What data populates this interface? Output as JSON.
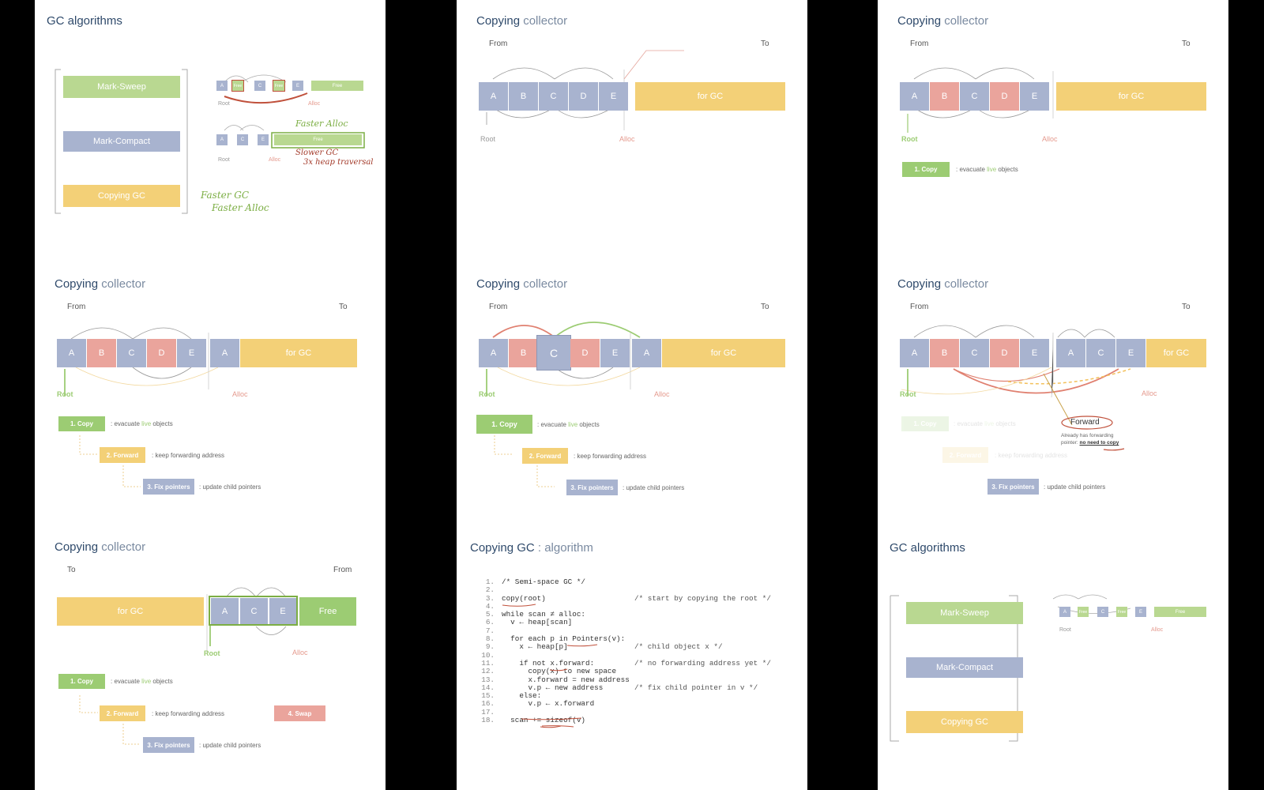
{
  "s1": {
    "title": "GC algorithms",
    "algos": [
      "Mark-Sweep",
      "Mark-Compact",
      "Copying GC"
    ],
    "ms_cells": [
      "A",
      "Free",
      "C",
      "Free",
      "E"
    ],
    "free": "Free",
    "mc_cells": [
      "A",
      "C",
      "E"
    ],
    "root": "Root",
    "alloc": "Alloc",
    "hand_faster_alloc": "Faster Alloc",
    "hand_slower_gc": "Slower GC",
    "hand_traversal": "3x heap traversal",
    "hand_faster_gc": "Faster GC",
    "hand_faster_alloc2": "Faster Alloc"
  },
  "s2": {
    "title_a": "Copying",
    "title_b": " collector",
    "from": "From",
    "to": "To",
    "cells": [
      "A",
      "B",
      "C",
      "D",
      "E"
    ],
    "for_gc": "for GC",
    "root": "Root",
    "alloc": "Alloc"
  },
  "s3": {
    "title_a": "Copying",
    "title_b": " collector",
    "from": "From",
    "to": "To",
    "cells": [
      "A",
      "B",
      "C",
      "D",
      "E"
    ],
    "for_gc": "for GC",
    "root": "Root",
    "alloc": "Alloc",
    "step1": "1. Copy",
    "step1_desc_a": ": evacuate ",
    "step1_desc_live": "live",
    "step1_desc_b": " objects"
  },
  "s4": {
    "title_a": "Copying",
    "title_b": " collector",
    "from": "From",
    "to": "To",
    "cells": [
      "A",
      "B",
      "C",
      "D",
      "E"
    ],
    "copied": [
      "A"
    ],
    "for_gc": "for GC",
    "root": "Root",
    "alloc": "Alloc",
    "step1": "1. Copy",
    "step1_desc_a": ": evacuate ",
    "step1_desc_live": "live",
    "step1_desc_b": " objects",
    "step2": "2. Forward",
    "step2_desc": ": keep forwarding address",
    "step3": "3. Fix pointers",
    "step3_desc": ": update child pointers"
  },
  "s5": {
    "title_a": "Copying",
    "title_b": " collector",
    "from": "From",
    "to": "To",
    "cells": [
      "A",
      "B",
      "C",
      "D",
      "E"
    ],
    "copied": [
      "A"
    ],
    "for_gc": "for GC",
    "root": "Root",
    "alloc": "Alloc",
    "step1": "1. Copy",
    "step1_desc_a": ": evacuate ",
    "step1_desc_live": "live",
    "step1_desc_b": " objects",
    "step2": "2. Forward",
    "step2_desc": ": keep forwarding address",
    "step3": "3. Fix pointers",
    "step3_desc": ": update child pointers"
  },
  "s6": {
    "title_a": "Copying",
    "title_b": " collector",
    "from": "From",
    "to": "To",
    "cells": [
      "A",
      "B",
      "C",
      "D",
      "E"
    ],
    "copied": [
      "A",
      "C",
      "E"
    ],
    "for_gc": "for GC",
    "root": "Root",
    "alloc": "Alloc",
    "forward": "Forward",
    "note1": "Already has forwarding",
    "note2a": "pointer: ",
    "note2b": "no need to copy",
    "step1": "1. Copy",
    "step1_desc_a": ": evacuate ",
    "step1_desc_live": "live",
    "step1_desc_b": " objects",
    "step2": "2. Forward",
    "step2_desc": ": keep forwarding address",
    "step3": "3. Fix pointers",
    "step3_desc": ": update child pointers"
  },
  "s7": {
    "title_a": "Copying",
    "title_b": " collector",
    "to": "To",
    "from": "From",
    "for_gc": "for GC",
    "cells": [
      "A",
      "C",
      "E"
    ],
    "free": "Free",
    "root": "Root",
    "alloc": "Alloc",
    "step1": "1. Copy",
    "step1_desc_a": ": evacuate ",
    "step1_desc_live": "live",
    "step1_desc_b": " objects",
    "step2": "2. Forward",
    "step2_desc": ": keep forwarding address",
    "step3": "3. Fix pointers",
    "step3_desc": ": update child pointers",
    "step4": "4. Swap"
  },
  "s8": {
    "title_a": "Copying GC",
    "title_b": " : algorithm",
    "line_numbers": [
      "1.",
      "2.",
      "3.",
      "4.",
      "5.",
      "6.",
      "7.",
      "8.",
      "9.",
      "10.",
      "11.",
      "12.",
      "13.",
      "14.",
      "15.",
      "16.",
      "17.",
      "18."
    ],
    "code": [
      "/* Semi-space GC */",
      "",
      "copy(root)",
      "",
      "while scan ≠ alloc:",
      "  v ← heap[scan]",
      "",
      "  for each p in Pointers(v):",
      "    x ← heap[p]",
      "",
      "    if not x.forward:",
      "      copy(x) to new space",
      "      x.forward = new address",
      "      v.p ← new address",
      "    else:",
      "      v.p ← x.forward",
      "",
      "  scan += sizeof(v)"
    ],
    "comments": [
      "",
      "",
      "/* start by copying the root */",
      "",
      "",
      "",
      "",
      "",
      "/* child object x */",
      "",
      "/* no forwarding address yet */",
      "",
      "",
      "/* fix child pointer in v */",
      "",
      "",
      "",
      ""
    ]
  },
  "s9": {
    "title": "GC algorithms",
    "algos": [
      "Mark-Sweep",
      "Mark-Compact",
      "Copying GC"
    ],
    "cells": [
      "A",
      "Free",
      "C",
      "Free",
      "E"
    ],
    "free": "Free",
    "root": "Root",
    "alloc": "Alloc"
  }
}
